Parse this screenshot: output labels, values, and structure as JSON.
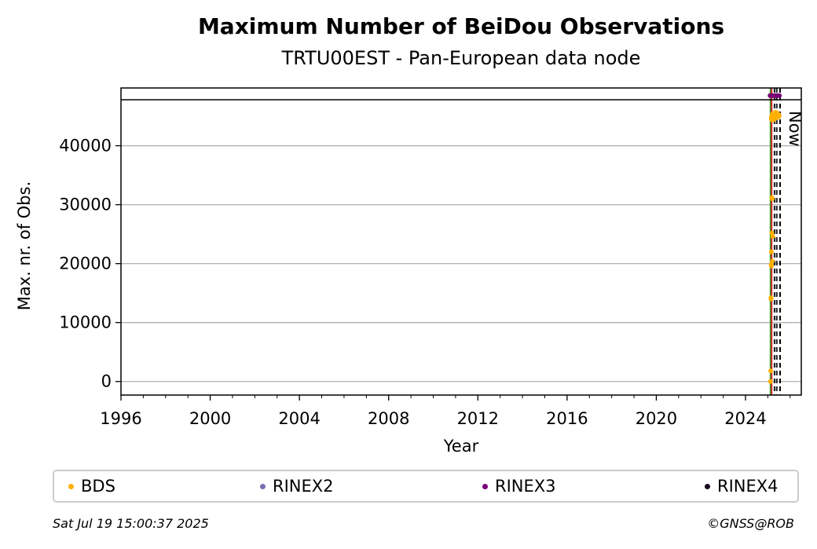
{
  "chart_data": {
    "type": "scatter",
    "title": "Maximum Number of BeiDou Observations",
    "subtitle": "TRTU00EST - Pan-European data node",
    "xlabel": "Year",
    "ylabel": "Max. nr. of Obs.",
    "xlim": [
      1996,
      2026.5
    ],
    "ylim": [
      -2300,
      49800
    ],
    "x_ticks": [
      1996,
      2000,
      2004,
      2008,
      2012,
      2016,
      2020,
      2024
    ],
    "y_ticks": [
      0,
      10000,
      20000,
      30000,
      40000
    ],
    "grid": "y",
    "now_label": "Now",
    "hline": 47800,
    "vlines": [
      {
        "x": 2025.12,
        "color": "#2ca02c",
        "style": "solid"
      },
      {
        "x": 2025.17,
        "color": "#d62728",
        "style": "solid"
      },
      {
        "x": 2025.3,
        "color": "#17202a",
        "style": "dashed"
      },
      {
        "x": 2025.4,
        "color": "#17202a",
        "style": "dashed"
      },
      {
        "x": 2025.55,
        "color": "#000000",
        "style": "dashed"
      }
    ],
    "series": [
      {
        "name": "BDS",
        "color": "#ffb000",
        "x": [
          2025.12,
          2025.13,
          2025.14,
          2025.15,
          2025.16,
          2025.18,
          2025.2,
          2025.22,
          2025.24,
          2025.26,
          2025.28,
          2025.3,
          2025.33,
          2025.36,
          2025.4,
          2025.44,
          2025.18,
          2025.22,
          2025.2,
          2025.28,
          2025.35,
          2025.14,
          2025.16
        ],
        "y": [
          0,
          1800,
          14000,
          19800,
          22000,
          25200,
          31000,
          44600,
          45000,
          45200,
          45100,
          44900,
          45300,
          45000,
          45200,
          45100,
          31200,
          24600,
          20400,
          44800,
          45400,
          14200,
          19600
        ]
      },
      {
        "name": "RINEX2",
        "color": "#7570b3",
        "x": [],
        "y": []
      },
      {
        "name": "RINEX3",
        "color": "#7a0177",
        "x": [
          2025.1,
          2025.16,
          2025.22,
          2025.28,
          2025.34,
          2025.4,
          2025.46,
          2025.52
        ],
        "y": [
          48500,
          48500,
          48500,
          48500,
          48500,
          48500,
          48500,
          48500
        ]
      },
      {
        "name": "RINEX4",
        "color": "#1a0a1f",
        "x": [],
        "y": []
      }
    ]
  },
  "legend": {
    "items": [
      {
        "label": "BDS",
        "color": "#ffb000"
      },
      {
        "label": "RINEX2",
        "color": "#7570b3"
      },
      {
        "label": "RINEX3",
        "color": "#7a0177"
      },
      {
        "label": "RINEX4",
        "color": "#1a0a1f"
      }
    ]
  },
  "footer": {
    "timestamp": "Sat Jul 19 15:00:37 2025",
    "credit": "©GNSS@ROB"
  }
}
